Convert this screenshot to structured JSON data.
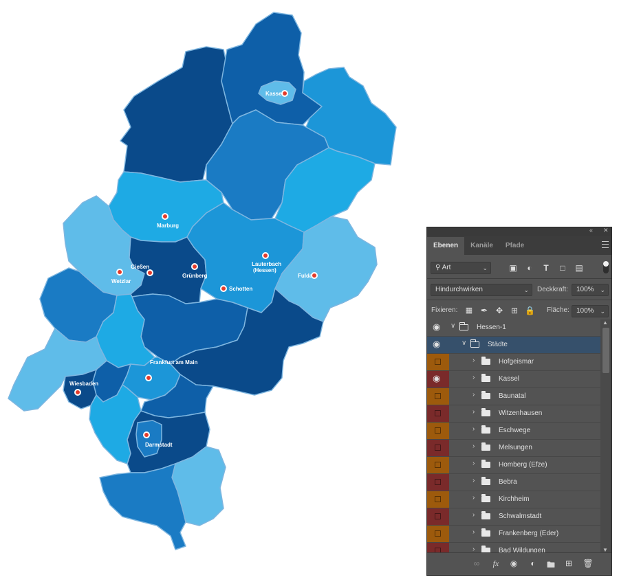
{
  "map": {
    "cities": [
      {
        "name": "Kassel"
      },
      {
        "name": "Marburg"
      },
      {
        "name": "Gießen"
      },
      {
        "name": "Wetzlar"
      },
      {
        "name": "Grünberg"
      },
      {
        "name": "Lauterbach\n(Hessen)"
      },
      {
        "name": "Schotten"
      },
      {
        "name": "Fulda"
      },
      {
        "name": "Frankfurt am Main"
      },
      {
        "name": "Wiesbaden"
      },
      {
        "name": "Darmstadt"
      }
    ],
    "colors": {
      "navy": "#0a4a8a",
      "dark": "#0e5fa8",
      "mid": "#1a7bc4",
      "bright": "#1c96d8",
      "light": "#1eaae4",
      "pale": "#5fbce9",
      "dot": "#e33b2b"
    }
  },
  "panel": {
    "tabs": [
      "Ebenen",
      "Kanäle",
      "Pfade"
    ],
    "active_tab": "Ebenen",
    "filter": {
      "value": "Art"
    },
    "blend_mode": "Hindurchwirken",
    "opacity_label": "Deckkraft:",
    "opacity_value": "100%",
    "lock_label": "Fixieren:",
    "fill_label": "Fläche:",
    "fill_value": "100%",
    "layers": [
      {
        "name": "Hessen-1",
        "level": 0,
        "expanded": true,
        "visible": true,
        "color": "none"
      },
      {
        "name": "Städte",
        "level": 1,
        "expanded": true,
        "visible": true,
        "color": "none",
        "selected": true
      },
      {
        "name": "Hofgeismar",
        "level": 2,
        "expanded": false,
        "visible": false,
        "color": "orange"
      },
      {
        "name": "Kassel",
        "level": 2,
        "expanded": false,
        "visible": true,
        "color": "red"
      },
      {
        "name": "Baunatal",
        "level": 2,
        "expanded": false,
        "visible": false,
        "color": "orange"
      },
      {
        "name": "Witzenhausen",
        "level": 2,
        "expanded": false,
        "visible": false,
        "color": "red"
      },
      {
        "name": "Eschwege",
        "level": 2,
        "expanded": false,
        "visible": false,
        "color": "orange"
      },
      {
        "name": "Melsungen",
        "level": 2,
        "expanded": false,
        "visible": false,
        "color": "red"
      },
      {
        "name": "Homberg (Efze)",
        "level": 2,
        "expanded": false,
        "visible": false,
        "color": "orange"
      },
      {
        "name": "Bebra",
        "level": 2,
        "expanded": false,
        "visible": false,
        "color": "red"
      },
      {
        "name": "Kirchheim",
        "level": 2,
        "expanded": false,
        "visible": false,
        "color": "orange"
      },
      {
        "name": "Schwalmstadt",
        "level": 2,
        "expanded": false,
        "visible": false,
        "color": "red"
      },
      {
        "name": "Frankenberg (Eder)",
        "level": 2,
        "expanded": false,
        "visible": false,
        "color": "orange"
      },
      {
        "name": "Bad Wildungen",
        "level": 2,
        "expanded": false,
        "visible": false,
        "color": "red"
      }
    ],
    "footer_icons": [
      "link-icon",
      "fx-icon",
      "mask-icon",
      "adjustment-icon",
      "new-group-icon",
      "new-layer-icon",
      "trash-icon"
    ]
  }
}
